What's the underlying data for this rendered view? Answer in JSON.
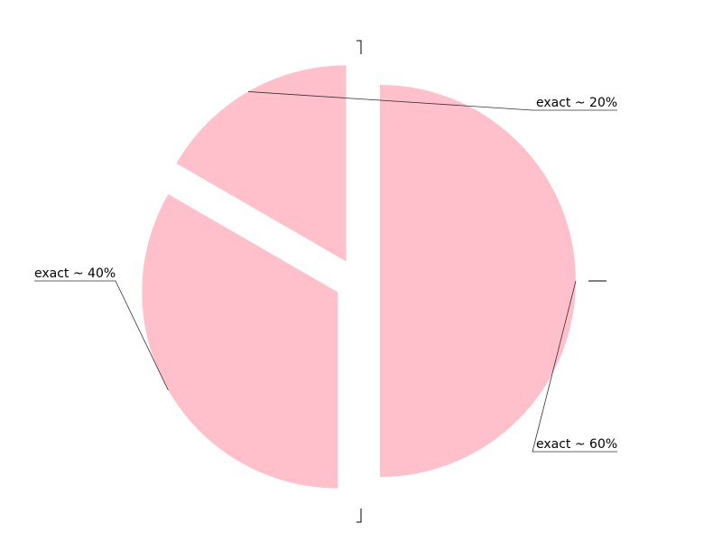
{
  "chart_data": {
    "type": "pie",
    "slices": [
      {
        "label": "exact ~ 20%",
        "value": 20
      },
      {
        "label": "exact ~ 40%",
        "value": 40
      },
      {
        "label": "exact ~ 60%",
        "value": 60
      }
    ],
    "colors": {
      "slice": "#ffc0cb",
      "background": "#ffffff",
      "text": "#000000"
    }
  }
}
